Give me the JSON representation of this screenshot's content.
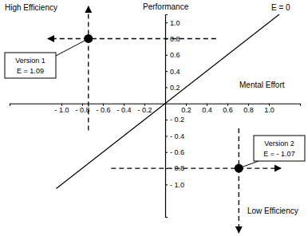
{
  "chart_data": {
    "type": "scatter",
    "x_label": "Mental Effort",
    "y_label": "Performance",
    "annotations": [
      "High Efficiency",
      "Low Efficiency"
    ],
    "reference_line": {
      "label": "E = 0",
      "x": [
        -1.05,
        1.1
      ],
      "values": [
        -1.05,
        1.1
      ]
    },
    "series": [
      {
        "name": "Version 1",
        "efficiency_label": "E = 1.09",
        "x": [
          -0.74
        ],
        "values": [
          0.8
        ]
      },
      {
        "name": "Version 2",
        "efficiency_label": "E = - 1.07",
        "x": [
          0.71
        ],
        "values": [
          -0.8
        ]
      }
    ],
    "color": "#000000",
    "marker": "circle",
    "grid": false,
    "xlim": [
      -1.5,
      1.3
    ],
    "xticks": [
      {
        "value": -1,
        "label": "- 1.0"
      },
      {
        "value": -0.8,
        "label": "- 0.8"
      },
      {
        "value": -0.6,
        "label": "- 0.6"
      },
      {
        "value": -0.4,
        "label": "- 0.4"
      },
      {
        "value": -0.2,
        "label": "- 0.2"
      },
      0.2,
      0.4,
      0.6,
      0.8,
      {
        "value": 1,
        "label": "1.0"
      }
    ],
    "ylim": [
      -1.4,
      1.1
    ],
    "yticks": [
      {
        "value": 1,
        "label": "1.0"
      },
      0.8,
      0.6,
      0.4,
      0.2,
      {
        "value": -0.2,
        "label": "- 0.2"
      },
      {
        "value": -0.4,
        "label": "- 0.4"
      },
      {
        "value": -0.6,
        "label": "- 0.6"
      },
      {
        "value": -0.8,
        "label": "- 0.8"
      },
      {
        "value": -1,
        "label": "- 1.0"
      }
    ]
  }
}
